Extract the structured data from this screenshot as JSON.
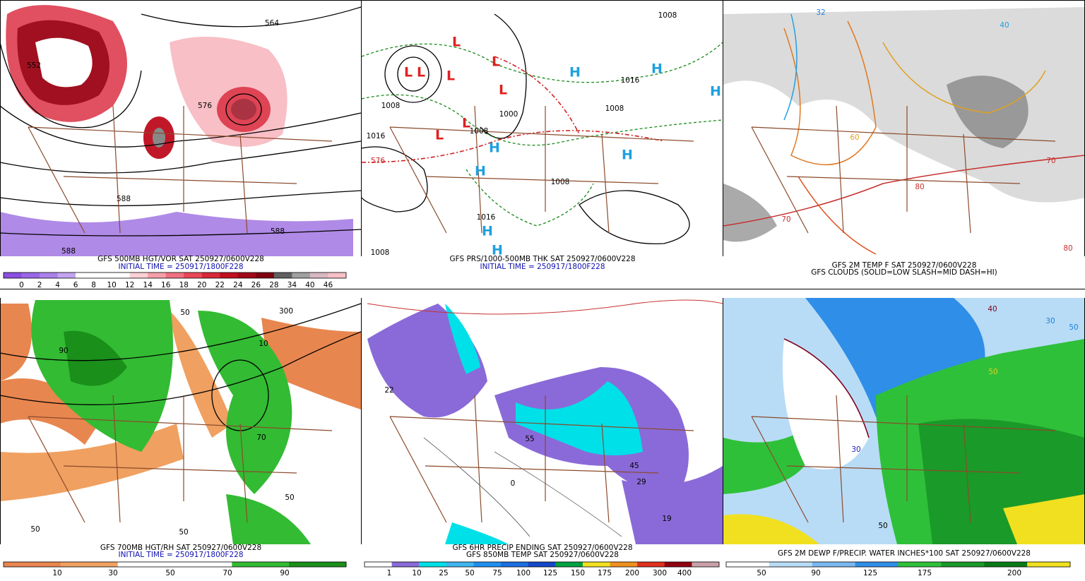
{
  "panels": [
    {
      "captions": [
        "GFS 500MB HGT/VOR SAT 250927/0600V228",
        "INITIAL TIME = 250917/1800F228"
      ],
      "colorbar_labels": [
        0,
        2,
        4,
        6,
        8,
        10,
        12,
        14,
        16,
        18,
        20,
        22,
        24,
        26,
        28,
        34,
        40,
        46
      ],
      "map_labels": [
        "552",
        "564",
        "576",
        "588",
        "588",
        "588"
      ]
    },
    {
      "captions": [
        "GFS PRS/1000-500MB THK SAT 250927/0600V228",
        "INITIAL TIME = 250917/1800F228"
      ],
      "map_labels": [
        "L",
        "L",
        "L",
        "L",
        "L",
        "L",
        "L",
        "L",
        "H",
        "H",
        "H",
        "H",
        "H",
        "H",
        "H",
        "H",
        "1008",
        "1016",
        "1008",
        "1000",
        "1016",
        "1008",
        "1008",
        "1016",
        "1008",
        "1008",
        "576"
      ]
    },
    {
      "captions": [
        "GFS 2M TEMP F SAT 250927/0600V228",
        "GFS CLOUDS (SOLID=LOW SLASH=MID DASH=HI)"
      ],
      "map_labels": [
        "32",
        "40",
        "60",
        "70",
        "80",
        "80",
        "70"
      ]
    },
    {
      "captions": [
        "GFS 700MB HGT/RH SAT 250927/0600V228",
        "INITIAL TIME = 250917/1800F228"
      ],
      "colorbar_labels": [
        10,
        30,
        50,
        70,
        90
      ],
      "map_labels": [
        "50",
        "300",
        "90",
        "10",
        "50",
        "50",
        "50",
        "70"
      ]
    },
    {
      "captions": [
        "GFS 6HR PRECIP ENDING SAT 250927/0600V228",
        "GFS 850MB TEMP SAT 250927/0600V228"
      ],
      "colorbar_labels": [
        1,
        10,
        25,
        50,
        75,
        100,
        125,
        150,
        175,
        200,
        300,
        400
      ],
      "map_labels": [
        "22",
        "55",
        "45",
        "29",
        "19",
        "0"
      ]
    },
    {
      "captions": [
        "GFS 2M DEWP F/PRECIP. WATER INCHES*100 SAT 250927/0600V228"
      ],
      "colorbar_labels": [
        50,
        90,
        125,
        175,
        200
      ],
      "map_labels": [
        "50",
        "40",
        "30",
        "30",
        "50",
        "50"
      ]
    }
  ]
}
